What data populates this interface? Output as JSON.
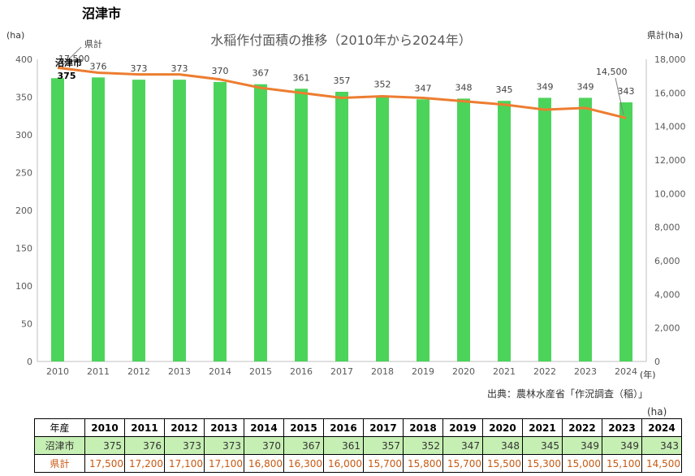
{
  "page": {
    "city_title": "沼津市",
    "source": "出典：農林水産省「作況調査（稲）」",
    "table_unit": "(ha)"
  },
  "colors": {
    "bar": "#4cd45a",
    "line": "#ed7d31",
    "city_row_bg": "#c6efb3",
    "pref_text": "#c65911"
  },
  "chart_data": {
    "type": "bar",
    "title": "水稲作付面積の推移（2010年から2024年）",
    "categories": [
      "2010",
      "2011",
      "2012",
      "2013",
      "2014",
      "2015",
      "2016",
      "2017",
      "2018",
      "2019",
      "2020",
      "2021",
      "2022",
      "2023",
      "2024"
    ],
    "x_unit": "(年)",
    "y_left": {
      "label": "(ha)",
      "min": 0,
      "max": 400,
      "ticks": [
        "0",
        "50",
        "100",
        "150",
        "200",
        "250",
        "300",
        "350",
        "400"
      ]
    },
    "y_right": {
      "label": "県計(ha)",
      "min": 0,
      "max": 18000,
      "ticks": [
        "0",
        "2,000",
        "4,000",
        "6,000",
        "8,000",
        "10,000",
        "12,000",
        "14,000",
        "16,000",
        "18,000"
      ]
    },
    "series": [
      {
        "name": "沼津市",
        "kind": "bar",
        "axis": "left",
        "values": [
          375,
          376,
          373,
          373,
          370,
          367,
          361,
          357,
          352,
          347,
          348,
          345,
          349,
          349,
          343
        ],
        "labels": [
          "375",
          "376",
          "373",
          "373",
          "370",
          "367",
          "361",
          "357",
          "352",
          "347",
          "348",
          "345",
          "349",
          "349",
          "343"
        ]
      },
      {
        "name": "県計",
        "kind": "line",
        "axis": "right",
        "values": [
          17500,
          17200,
          17100,
          17100,
          16800,
          16300,
          16000,
          15700,
          15800,
          15700,
          15500,
          15300,
          15000,
          15100,
          14500
        ],
        "first_label": "17,500",
        "last_label": "14,500"
      }
    ],
    "grid": false,
    "legend": "none"
  },
  "table": {
    "header_label": "年産",
    "years": [
      "2010",
      "2011",
      "2012",
      "2013",
      "2014",
      "2015",
      "2016",
      "2017",
      "2018",
      "2019",
      "2020",
      "2021",
      "2022",
      "2023",
      "2024"
    ],
    "city_label": "沼津市",
    "city_values": [
      "375",
      "376",
      "373",
      "373",
      "370",
      "367",
      "361",
      "357",
      "352",
      "347",
      "348",
      "345",
      "349",
      "349",
      "343"
    ],
    "pref_label": "県計",
    "pref_values": [
      "17,500",
      "17,200",
      "17,100",
      "17,100",
      "16,800",
      "16,300",
      "16,000",
      "15,700",
      "15,800",
      "15,700",
      "15,500",
      "15,300",
      "15,000",
      "15,100",
      "14,500"
    ]
  }
}
